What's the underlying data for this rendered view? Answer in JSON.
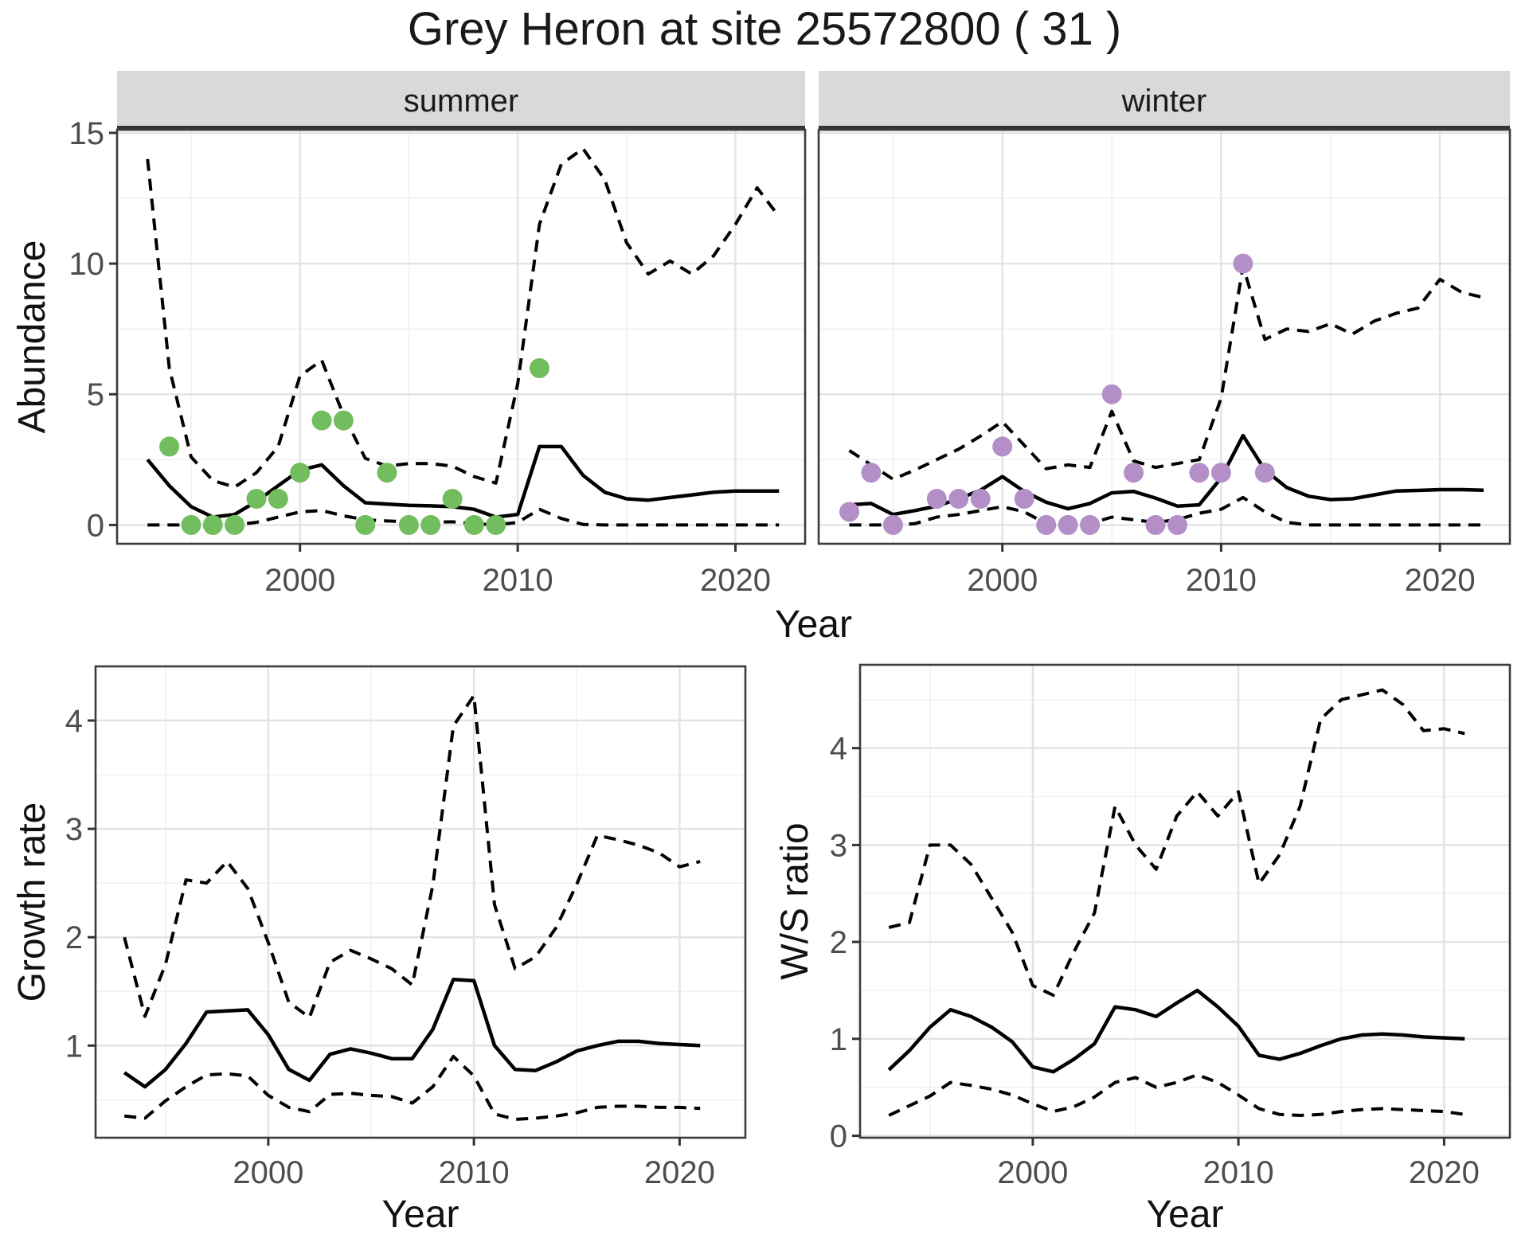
{
  "title": "Grey Heron at site 25572800 ( 31 )",
  "colors": {
    "summer_points": "#72BD5D",
    "winter_points": "#B48FC7",
    "line": "#000000",
    "grid_major": "#E3E3E3",
    "grid_minor": "#F0F0F0",
    "strip_fill": "#D9D9D9",
    "strip_border": "#333333",
    "panel_border": "#3C3C3C",
    "tick_text": "#4D4D4D",
    "panel_bg": "#FFFFFF"
  },
  "chart_data": [
    {
      "id": "abundance",
      "type": "line",
      "xlabel": "Year",
      "ylabel": "Abundance",
      "x_ticks": [
        2000,
        2010,
        2020
      ],
      "x_minor": [
        1995,
        2005,
        2015
      ],
      "y_ticks": [
        0,
        5,
        10,
        15
      ],
      "y_minor": [
        2.5,
        7.5,
        12.5
      ],
      "xlim": [
        1991.6,
        2023.2
      ],
      "ylim": [
        -0.72,
        15.12
      ],
      "grid": true,
      "legend": "none",
      "years": [
        1993,
        1994,
        1995,
        1996,
        1997,
        1998,
        1999,
        2000,
        2001,
        2002,
        2003,
        2004,
        2005,
        2006,
        2007,
        2008,
        2009,
        2010,
        2011,
        2012,
        2013,
        2014,
        2015,
        2016,
        2017,
        2018,
        2019,
        2020,
        2021,
        2022
      ],
      "facets": [
        {
          "label": "summer",
          "median": [
            2.5,
            1.5,
            0.7,
            0.3,
            0.4,
            0.9,
            1.5,
            2.1,
            2.3,
            1.5,
            0.85,
            0.8,
            0.75,
            0.73,
            0.7,
            0.6,
            0.3,
            0.4,
            3.0,
            3.0,
            1.9,
            1.25,
            1.0,
            0.95,
            1.05,
            1.15,
            1.25,
            1.3,
            1.3,
            1.3
          ],
          "upper_ci": [
            14.0,
            6.0,
            2.6,
            1.7,
            1.45,
            2.0,
            3.0,
            5.7,
            6.3,
            4.2,
            2.55,
            2.25,
            2.35,
            2.35,
            2.25,
            1.85,
            1.6,
            5.4,
            11.5,
            13.8,
            14.4,
            13.2,
            10.8,
            9.6,
            10.1,
            9.6,
            10.3,
            11.5,
            12.9,
            11.8
          ],
          "lower_ci": [
            0,
            0,
            0,
            0,
            0,
            0.1,
            0.3,
            0.5,
            0.55,
            0.35,
            0.2,
            0.15,
            0.12,
            0.1,
            0.12,
            0.05,
            0,
            0.1,
            0.6,
            0.25,
            0.02,
            0,
            0,
            0,
            0,
            0,
            0,
            0,
            0,
            0
          ],
          "observations": [
            [
              1994,
              3
            ],
            [
              1995,
              0
            ],
            [
              1996,
              0
            ],
            [
              1997,
              0
            ],
            [
              1998,
              1
            ],
            [
              1999,
              1
            ],
            [
              2000,
              2
            ],
            [
              2001,
              4
            ],
            [
              2002,
              4
            ],
            [
              2003,
              0
            ],
            [
              2004,
              2
            ],
            [
              2005,
              0
            ],
            [
              2006,
              0
            ],
            [
              2007,
              1
            ],
            [
              2008,
              0
            ],
            [
              2009,
              0
            ],
            [
              2011,
              6
            ]
          ]
        },
        {
          "label": "winter",
          "median": [
            0.77,
            0.82,
            0.4,
            0.55,
            0.72,
            1.0,
            1.33,
            1.85,
            1.28,
            0.87,
            0.62,
            0.82,
            1.23,
            1.28,
            1.03,
            0.72,
            0.77,
            1.8,
            3.42,
            2.1,
            1.43,
            1.1,
            0.97,
            1.0,
            1.15,
            1.3,
            1.32,
            1.35,
            1.35,
            1.33
          ],
          "upper_ci": [
            2.85,
            2.3,
            1.75,
            2.1,
            2.5,
            2.9,
            3.4,
            3.95,
            3.05,
            2.15,
            2.3,
            2.2,
            4.35,
            2.45,
            2.2,
            2.35,
            2.5,
            4.85,
            9.9,
            7.1,
            7.5,
            7.4,
            7.7,
            7.3,
            7.8,
            8.1,
            8.3,
            9.4,
            8.9,
            8.7
          ],
          "lower_ci": [
            0,
            0,
            0,
            0.05,
            0.3,
            0.4,
            0.55,
            0.7,
            0.5,
            0.05,
            0,
            0.05,
            0.3,
            0.2,
            0.1,
            0.2,
            0.45,
            0.6,
            1.05,
            0.5,
            0.1,
            0,
            0,
            0,
            0,
            0,
            0,
            0,
            0,
            0
          ],
          "observations": [
            [
              1993,
              0.5
            ],
            [
              1994,
              2
            ],
            [
              1995,
              0
            ],
            [
              1997,
              1
            ],
            [
              1998,
              1
            ],
            [
              1999,
              1
            ],
            [
              2000,
              3
            ],
            [
              2001,
              1
            ],
            [
              2002,
              0
            ],
            [
              2003,
              0
            ],
            [
              2004,
              0
            ],
            [
              2005,
              5
            ],
            [
              2006,
              2
            ],
            [
              2007,
              0
            ],
            [
              2008,
              0
            ],
            [
              2009,
              2
            ],
            [
              2010,
              2
            ],
            [
              2011,
              10
            ],
            [
              2012,
              2
            ]
          ]
        }
      ]
    },
    {
      "id": "growth_rate",
      "type": "line",
      "xlabel": "Year",
      "ylabel": "Growth rate",
      "x_ticks": [
        2000,
        2010,
        2020
      ],
      "x_minor": [
        1995,
        2005,
        2015
      ],
      "y_ticks": [
        1,
        2,
        3,
        4
      ],
      "y_minor": [
        0.5,
        1.5,
        2.5,
        3.5,
        4.5
      ],
      "xlim": [
        1991.6,
        2023.2
      ],
      "ylim": [
        0.15,
        4.5
      ],
      "grid": true,
      "legend": "none",
      "years": [
        1993,
        1994,
        1995,
        1996,
        1997,
        1998,
        1999,
        2000,
        2001,
        2002,
        2003,
        2004,
        2005,
        2006,
        2007,
        2008,
        2009,
        2010,
        2011,
        2012,
        2013,
        2014,
        2015,
        2016,
        2017,
        2018,
        2019,
        2020,
        2021
      ],
      "median": [
        0.75,
        0.62,
        0.78,
        1.02,
        1.31,
        1.32,
        1.33,
        1.1,
        0.78,
        0.68,
        0.92,
        0.97,
        0.93,
        0.88,
        0.88,
        1.15,
        1.61,
        1.6,
        1.0,
        0.78,
        0.77,
        0.85,
        0.95,
        1.0,
        1.04,
        1.04,
        1.02,
        1.01,
        1.0
      ],
      "upper_ci": [
        2.0,
        1.27,
        1.75,
        2.53,
        2.5,
        2.7,
        2.45,
        1.95,
        1.4,
        1.26,
        1.77,
        1.88,
        1.8,
        1.71,
        1.56,
        2.48,
        3.95,
        4.23,
        2.3,
        1.71,
        1.82,
        2.09,
        2.49,
        2.94,
        2.9,
        2.85,
        2.78,
        2.65,
        2.7
      ],
      "lower_ci": [
        0.35,
        0.33,
        0.49,
        0.62,
        0.73,
        0.74,
        0.72,
        0.54,
        0.43,
        0.39,
        0.55,
        0.56,
        0.54,
        0.53,
        0.47,
        0.62,
        0.9,
        0.72,
        0.37,
        0.32,
        0.33,
        0.35,
        0.38,
        0.43,
        0.44,
        0.44,
        0.43,
        0.43,
        0.42
      ]
    },
    {
      "id": "ws_ratio",
      "type": "line",
      "xlabel": "Year",
      "ylabel": "W/S ratio",
      "x_ticks": [
        2000,
        2010,
        2020
      ],
      "x_minor": [
        1995,
        2005,
        2015
      ],
      "y_ticks": [
        0,
        1,
        2,
        3,
        4
      ],
      "y_minor": [
        0.5,
        1.5,
        2.5,
        3.5,
        4.5
      ],
      "xlim": [
        1991.6,
        2023.2
      ],
      "ylim": [
        -0.02,
        4.86
      ],
      "grid": true,
      "legend": "none",
      "years": [
        1993,
        1994,
        1995,
        1996,
        1997,
        1998,
        1999,
        2000,
        2001,
        2002,
        2003,
        2004,
        2005,
        2006,
        2007,
        2008,
        2009,
        2010,
        2011,
        2012,
        2013,
        2014,
        2015,
        2016,
        2017,
        2018,
        2019,
        2020,
        2021
      ],
      "median": [
        0.68,
        0.88,
        1.12,
        1.3,
        1.23,
        1.12,
        0.97,
        0.71,
        0.66,
        0.79,
        0.95,
        1.33,
        1.3,
        1.23,
        1.37,
        1.5,
        1.33,
        1.13,
        0.83,
        0.79,
        0.85,
        0.93,
        1.0,
        1.04,
        1.05,
        1.04,
        1.02,
        1.01,
        1.0
      ],
      "upper_ci": [
        2.15,
        2.2,
        3.0,
        3.0,
        2.8,
        2.45,
        2.1,
        1.55,
        1.45,
        1.9,
        2.3,
        3.4,
        3.0,
        2.75,
        3.3,
        3.55,
        3.3,
        3.55,
        2.6,
        2.9,
        3.4,
        4.3,
        4.5,
        4.55,
        4.6,
        4.45,
        4.18,
        4.2,
        4.15
      ],
      "lower_ci": [
        0.21,
        0.31,
        0.41,
        0.55,
        0.52,
        0.48,
        0.42,
        0.33,
        0.25,
        0.3,
        0.4,
        0.55,
        0.6,
        0.5,
        0.55,
        0.63,
        0.55,
        0.42,
        0.28,
        0.22,
        0.21,
        0.22,
        0.25,
        0.27,
        0.28,
        0.27,
        0.26,
        0.25,
        0.22
      ]
    }
  ]
}
